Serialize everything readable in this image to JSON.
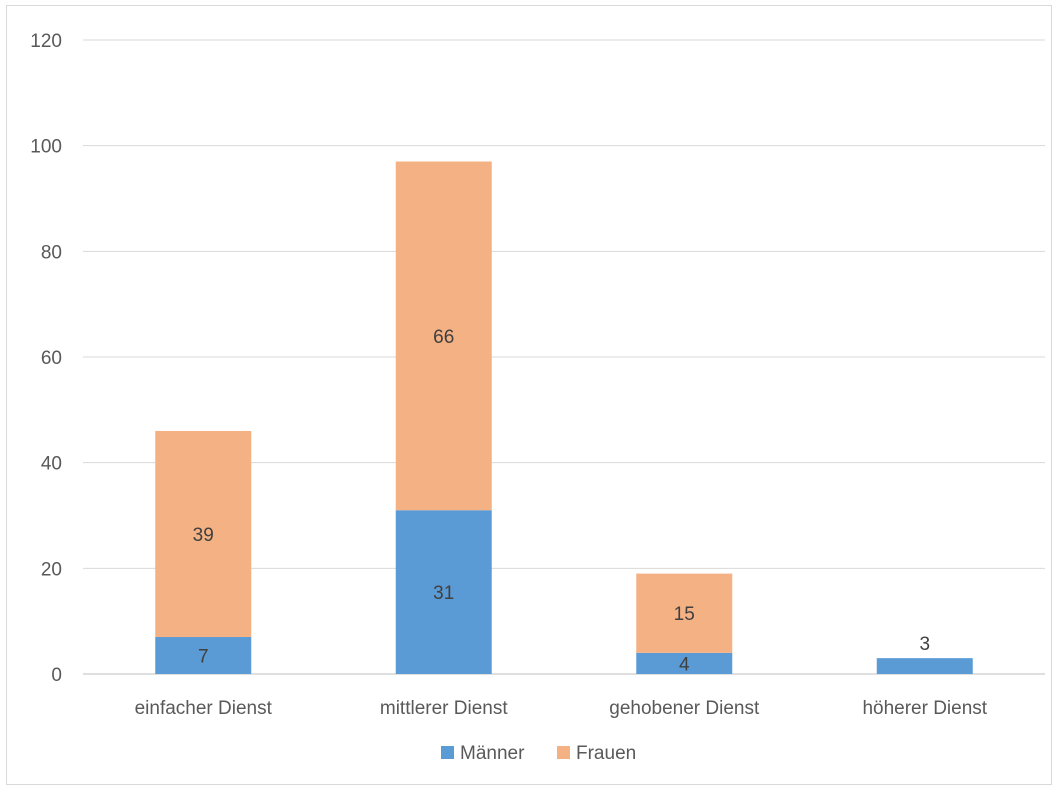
{
  "chart_data": {
    "type": "bar",
    "stacked": true,
    "categories": [
      "einfacher Dienst",
      "mittlerer Dienst",
      "gehobener Dienst",
      "höherer Dienst"
    ],
    "series": [
      {
        "name": "Männer",
        "values": [
          7,
          31,
          4,
          3
        ],
        "color": "#5b9bd5"
      },
      {
        "name": "Frauen",
        "values": [
          39,
          66,
          15,
          0
        ],
        "color": "#f4b183"
      }
    ],
    "data_labels": {
      "Männer": [
        "7",
        "31",
        "4",
        "3"
      ],
      "Frauen": [
        "39",
        "66",
        "15",
        null
      ]
    },
    "ylim": [
      0,
      120
    ],
    "yticks": [
      "0",
      "20",
      "40",
      "60",
      "80",
      "100",
      "120"
    ],
    "grid": true,
    "legend_position": "bottom",
    "title": "",
    "xlabel": "",
    "ylabel": ""
  }
}
